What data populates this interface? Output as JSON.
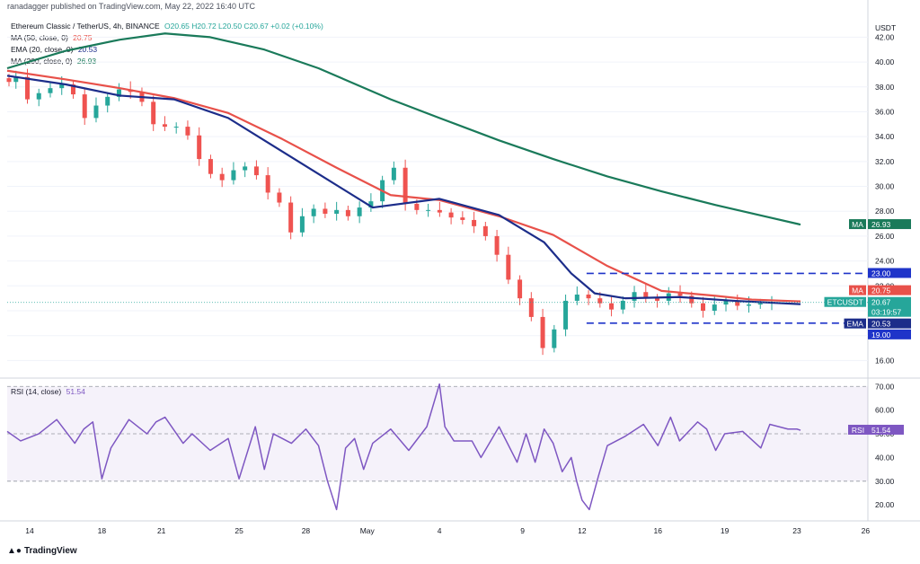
{
  "attribution": "ranadagger published on TradingView.com, May 22, 2022 16:40 UTC",
  "legend": {
    "symbol_line": "Ethereum Classic / TetherUS, 4h, BINANCE",
    "ohlc": "O20.65 H20.72 L20.50 C20.67 +0.02 (+0.10%)",
    "ma50": {
      "label": "MA (50, close, 0)",
      "value": "20.75"
    },
    "ema20": {
      "label": "EMA (20, close, 0)",
      "value": "20.53"
    },
    "ma200": {
      "label": "MA (200, close, 0)",
      "value": "26.93"
    },
    "rsi": {
      "label": "RSI (14, close)",
      "value": "51.54"
    }
  },
  "footer_logo": "TradingView",
  "colors": {
    "ma50": "#e8514a",
    "ema20": "#1c2d8a",
    "ma200": "#1a7a5a",
    "rsi": "#7e57c2",
    "up": "#26a69a",
    "down": "#ef5350",
    "levels": "#1f34c9"
  },
  "chart_data": [
    {
      "type": "candlestick",
      "title": "Ethereum Classic / TetherUS, 4h, BINANCE",
      "ylabel": "USDT",
      "ylim": [
        14.8,
        43.4
      ],
      "yticks": [
        "16.00",
        "18.00",
        "20.00",
        "22.00",
        "24.00",
        "26.00",
        "28.00",
        "30.00",
        "32.00",
        "34.00",
        "36.00",
        "38.00",
        "40.00",
        "42.00"
      ],
      "x_tick_labels": [
        "14",
        "18",
        "21",
        "25",
        "28",
        "May",
        "4",
        "9",
        "12",
        "16",
        "19",
        "23",
        "26"
      ],
      "x_tick_index": [
        0,
        4.0,
        7.3,
        11.6,
        15.3,
        18.7,
        22.7,
        27.3,
        30.6,
        34.8,
        38.5,
        42.5,
        46.3
      ],
      "price_labels": [
        {
          "text": "MA",
          "value": "26.93",
          "price": 26.93,
          "color": "#1a7a5a"
        },
        {
          "text": "",
          "value": "23.00",
          "price": 23.0,
          "color": "#1f34c9"
        },
        {
          "text": "MA",
          "value": "20.75",
          "price": 20.75,
          "color": "#e8514a"
        },
        {
          "text": "ETCUSDT",
          "value": "20.67",
          "sub": "03:19:57",
          "price": 20.67,
          "color": "#26a69a"
        },
        {
          "text": "EMA",
          "value": "20.53",
          "price": 20.53,
          "color": "#1c2d8a"
        },
        {
          "text": "",
          "value": "19.00",
          "price": 19.0,
          "color": "#1f34c9"
        }
      ],
      "levels": [
        23.0,
        19.0
      ],
      "last_price": 20.67,
      "series": [
        {
          "name": "MA (50, close, 0)",
          "x": [
            -1.5,
            2,
            5,
            8,
            11,
            14,
            17,
            20,
            22.7,
            26,
            29,
            32,
            35,
            38,
            40,
            42.7
          ],
          "y": [
            39.3,
            38.6,
            37.9,
            37.1,
            35.9,
            33.8,
            31.5,
            29.3,
            28.9,
            27.6,
            26.1,
            23.6,
            21.6,
            21.2,
            20.9,
            20.75
          ]
        },
        {
          "name": "EMA (20, close, 0)",
          "x": [
            -1.5,
            2,
            5,
            8,
            11,
            13,
            16,
            19,
            22.7,
            26,
            28.5,
            30,
            31.3,
            33,
            36,
            39,
            42.7
          ],
          "y": [
            38.9,
            38.2,
            37.3,
            37.0,
            35.5,
            33.7,
            31.0,
            28.3,
            29.0,
            27.7,
            25.5,
            23.0,
            21.4,
            21.0,
            21.1,
            20.8,
            20.53
          ]
        },
        {
          "name": "MA (200, close, 0)",
          "x": [
            -1.5,
            2,
            5,
            7.5,
            10,
            13,
            16,
            20,
            22.7,
            26,
            29,
            32,
            35,
            38,
            41,
            42.7
          ],
          "y": [
            39.5,
            40.9,
            41.8,
            42.3,
            42.0,
            41.0,
            39.5,
            37.0,
            35.5,
            33.7,
            32.2,
            30.8,
            29.6,
            28.5,
            27.5,
            26.93
          ]
        }
      ],
      "candles_close": [
        38.4,
        38.8,
        37.0,
        37.5,
        37.9,
        38.2,
        37.4,
        35.5,
        36.5,
        37.2,
        37.8,
        37.6,
        36.8,
        35.0,
        34.8,
        34.8,
        34.1,
        32.2,
        31.0,
        30.5,
        31.3,
        31.6,
        30.9,
        29.5,
        28.7,
        26.3,
        27.6,
        28.2,
        27.8,
        28.1,
        27.6,
        28.3,
        28.8,
        30.5,
        31.5,
        28.6,
        28.1,
        28.1,
        27.9,
        27.5,
        27.3,
        26.8,
        26.0,
        24.5,
        22.5,
        21.0,
        19.5,
        17.0,
        18.5,
        20.8,
        21.3,
        21.0,
        20.6,
        20.1,
        20.8,
        21.5,
        21.0,
        20.8,
        21.4,
        21.2,
        20.6,
        20.0,
        20.5,
        20.8,
        20.4,
        20.5,
        20.6,
        20.67
      ]
    },
    {
      "type": "line",
      "title": "RSI (14, close)",
      "ylim": [
        14,
        72
      ],
      "yticks": [
        "20.00",
        "30.00",
        "40.00",
        "50.00",
        "60.00",
        "70.00"
      ],
      "bands": [
        30,
        70
      ],
      "midline": 50,
      "series": [
        {
          "name": "RSI (14, close)",
          "x": [
            -1.5,
            -0.5,
            0.5,
            1.5,
            2.5,
            3.0,
            3.5,
            4.0,
            4.5,
            5.5,
            6.5,
            7.0,
            7.5,
            8.5,
            9.0,
            10.0,
            11.0,
            11.6,
            12.5,
            13.0,
            13.5,
            14.5,
            15.3,
            16.0,
            16.5,
            17.0,
            17.5,
            18.0,
            18.5,
            19.0,
            20.0,
            21.0,
            22.0,
            22.7,
            23.0,
            23.5,
            24.5,
            25.0,
            26.0,
            27.0,
            27.5,
            28.0,
            28.5,
            29.0,
            29.5,
            30.0,
            30.3,
            30.6,
            31.0,
            31.5,
            32.0,
            33.0,
            34.0,
            34.8,
            35.5,
            36.0,
            37.0,
            37.5,
            38.0,
            38.5,
            39.5,
            40.5,
            41.0,
            42.0,
            42.5,
            42.7
          ],
          "y": [
            51,
            47,
            50,
            56,
            46,
            52,
            55,
            31,
            44,
            56,
            50,
            55,
            57,
            46,
            50,
            43,
            48,
            31,
            53,
            35,
            50,
            46,
            52,
            45,
            30,
            18,
            44,
            48,
            35,
            46,
            52,
            43,
            53,
            71,
            53,
            47,
            47,
            40,
            53,
            38,
            50,
            38,
            52,
            46,
            34,
            40,
            30,
            22,
            18,
            32,
            45,
            49,
            54,
            45,
            57,
            47,
            55,
            52,
            43,
            50,
            51,
            44,
            54,
            52,
            52,
            51.5
          ]
        }
      ]
    }
  ]
}
